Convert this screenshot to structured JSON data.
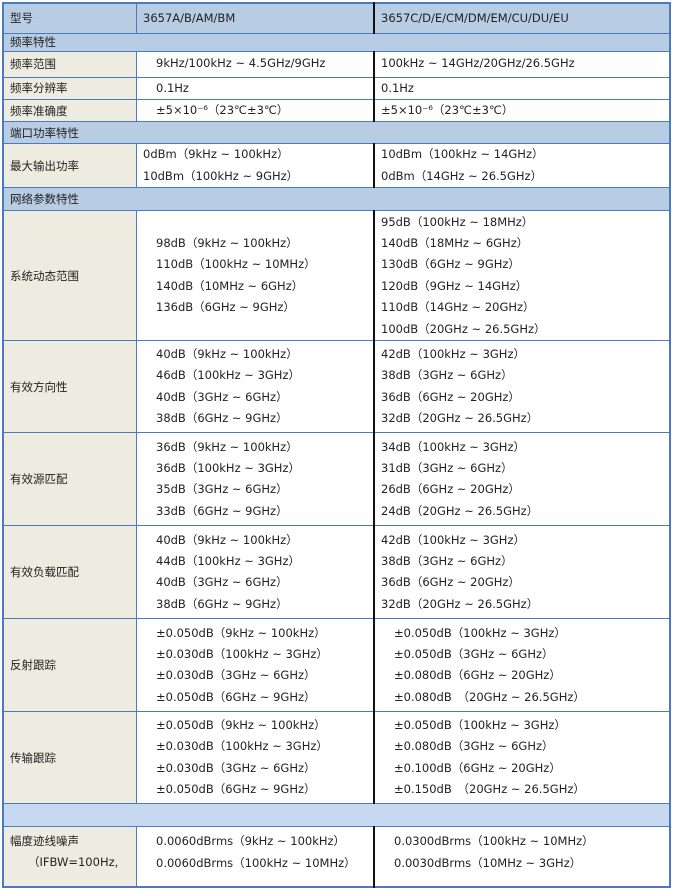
{
  "header": {
    "label": "型号",
    "col_a": "3657A/B/AM/BM",
    "col_b": "3657C/D/E/CM/DM/EM/CU/DU/EU"
  },
  "rows": [
    {
      "type": "section",
      "label": "频率特性"
    },
    {
      "type": "data",
      "label": "频率范围",
      "a": [
        "9kHz/100kHz ~ 4.5GHz/9GHz"
      ],
      "b": [
        "100kHz ~ 14GHz/20GHz/26.5GHz"
      ]
    },
    {
      "type": "data",
      "label": "频率分辨率",
      "a": [
        "0.1Hz"
      ],
      "b": [
        "0.1Hz"
      ]
    },
    {
      "type": "data",
      "label": "频率准确度",
      "a": [
        "±5×10⁻⁶（23℃±3℃）"
      ],
      "b": [
        "±5×10⁻⁶（23℃±3℃）"
      ]
    },
    {
      "type": "section",
      "label": "端口功率特性"
    },
    {
      "type": "data",
      "label": "最大输出功率",
      "a": [
        "0dBm（9kHz ~ 100kHz）",
        "10dBm（100kHz ~ 9GHz）"
      ],
      "b": [
        "10dBm（100kHz ~ 14GHz）",
        "0dBm（14GHz ~ 26.5GHz）"
      ]
    },
    {
      "type": "section",
      "label": "网络参数特性"
    },
    {
      "type": "data",
      "label": "系统动态范围",
      "a": [
        "98dB（9kHz ~ 100kHz）",
        "110dB（100kHz ~ 10MHz）",
        "140dB（10MHz ~ 6GHz）",
        "136dB（6GHz ~ 9GHz）"
      ],
      "b": [
        "95dB（100kHz ~ 18MHz）",
        "140dB（18MHz ~ 6GHz）",
        "130dB（6GHz ~ 9GHz）",
        "120dB（9GHz ~ 14GHz）",
        "110dB（14GHz ~ 20GHz）",
        "100dB（20GHz ~ 26.5GHz）"
      ]
    },
    {
      "type": "data",
      "label": "有效方向性",
      "a": [
        "40dB（9kHz ~ 100kHz）",
        "46dB（100kHz ~ 3GHz）",
        "40dB（3GHz ~ 6GHz）",
        "38dB（6GHz ~ 9GHz）"
      ],
      "b": [
        "42dB（100kHz ~ 3GHz）",
        "38dB（3GHz ~ 6GHz）",
        "36dB（6GHz ~ 20GHz）",
        "32dB（20GHz ~ 26.5GHz）"
      ]
    },
    {
      "type": "data",
      "label": "有效源匹配",
      "a": [
        "36dB（9kHz ~ 100kHz）",
        "36dB（100kHz ~ 3GHz）",
        "35dB（3GHz ~ 6GHz）",
        "33dB（6GHz ~ 9GHz）"
      ],
      "b": [
        "34dB（100kHz ~ 3GHz）",
        "31dB（3GHz ~ 6GHz）",
        "26dB（6GHz ~ 20GHz）",
        "24dB（20GHz ~ 26.5GHz）"
      ]
    },
    {
      "type": "data",
      "label": "有效负载匹配",
      "a": [
        "40dB（9kHz ~ 100kHz）",
        "44dB（100kHz ~ 3GHz）",
        "40dB（3GHz ~ 6GHz）",
        "38dB（6GHz ~ 9GHz）"
      ],
      "b": [
        "42dB（100kHz ~ 3GHz）",
        "38dB（3GHz ~ 6GHz）",
        "36dB（6GHz ~ 20GHz）",
        "32dB（20GHz ~ 26.5GHz）"
      ]
    },
    {
      "type": "data",
      "label": "反射跟踪",
      "a": [
        "±0.050dB（9kHz ~ 100kHz）",
        "±0.030dB（100kHz ~ 3GHz）",
        "±0.030dB（3GHz ~ 6GHz）",
        "±0.050dB（6GHz ~ 9GHz）"
      ],
      "b": [
        "±0.050dB（100kHz ~ 3GHz）",
        "±0.050dB（3GHz ~ 6GHz）",
        "±0.080dB（6GHz ~ 20GHz）",
        "±0.080dB　（20GHz ~ 26.5GHz）"
      ]
    },
    {
      "type": "data",
      "label": "传输跟踪",
      "a": [
        "±0.050dB（9kHz ~ 100kHz）",
        "±0.030dB（100kHz ~ 3GHz）",
        "±0.030dB（3GHz ~ 6GHz）",
        "±0.050dB（6GHz ~ 9GHz）"
      ],
      "b": [
        "±0.050dB（100kHz ~ 3GHz）",
        "±0.080dB（3GHz ~ 6GHz）",
        "±0.100dB（6GHz ~ 20GHz）",
        "±0.150dB　（20GHz ~ 26.5GHz）"
      ]
    },
    {
      "type": "blank",
      "label": ""
    },
    {
      "type": "data",
      "label": "幅度迹线噪声",
      "label2": "（IFBW=100Hz,",
      "a": [
        "0.0060dBrms（9kHz ~ 100kHz）",
        "0.0060dBrms（100kHz ~ 10MHz）"
      ],
      "b": [
        "0.0300dBrms（100kHz ~ 10MHz）",
        "0.0030dBrms（10MHz ~ 3GHz）"
      ]
    }
  ]
}
